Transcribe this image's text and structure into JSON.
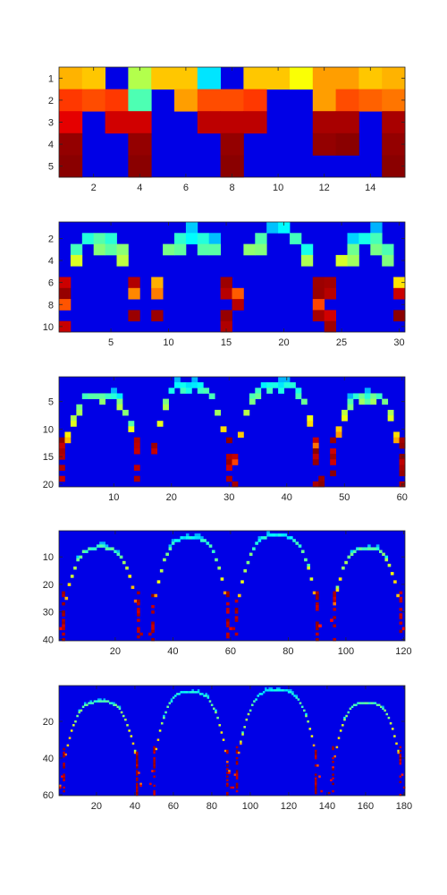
{
  "figure": {
    "background": "#ffffff",
    "colormap": "jet",
    "axis_color": "#262626"
  },
  "chart_data": [
    {
      "type": "heatmap",
      "title": "",
      "xlabel": "",
      "ylabel": "",
      "rows": 5,
      "cols": 15,
      "xlim": [
        0.5,
        15.5
      ],
      "ylim": [
        0.5,
        5.5
      ],
      "y_reversed": true,
      "x_ticks": [
        2,
        4,
        6,
        8,
        10,
        12,
        14
      ],
      "y_ticks": [
        1,
        2,
        3,
        4,
        5
      ],
      "clim": [
        0,
        1
      ],
      "matrix": [
        [
          0.7,
          0.68,
          0.1,
          0.55,
          0.68,
          0.68,
          0.35,
          0.1,
          0.68,
          0.68,
          0.62,
          0.72,
          0.72,
          0.68,
          0.7
        ],
        [
          0.82,
          0.8,
          0.82,
          0.45,
          0.1,
          0.72,
          0.8,
          0.8,
          0.82,
          0.1,
          0.1,
          0.72,
          0.8,
          0.78,
          0.76
        ],
        [
          0.9,
          0.1,
          0.92,
          0.92,
          0.1,
          0.1,
          0.94,
          0.94,
          0.94,
          0.1,
          0.1,
          0.96,
          0.96,
          0.1,
          0.96
        ],
        [
          0.98,
          0.1,
          0.1,
          0.98,
          0.1,
          0.1,
          0.1,
          0.98,
          0.1,
          0.1,
          0.1,
          0.98,
          0.99,
          0.1,
          0.98
        ],
        [
          0.99,
          0.1,
          0.1,
          0.99,
          0.1,
          0.1,
          0.1,
          0.99,
          0.1,
          0.1,
          0.1,
          0.1,
          0.1,
          0.1,
          0.99
        ]
      ]
    },
    {
      "type": "heatmap",
      "title": "",
      "xlabel": "",
      "ylabel": "",
      "rows": 10,
      "cols": 30,
      "xlim": [
        0.5,
        30.5
      ],
      "ylim": [
        0.5,
        10.5
      ],
      "y_reversed": true,
      "x_ticks": [
        5,
        10,
        15,
        20,
        25,
        30
      ],
      "y_ticks": [
        2,
        4,
        6,
        8,
        10
      ],
      "clim": [
        0,
        1
      ],
      "generator": "arches",
      "arch_count": 3,
      "arch_depth": 10,
      "seed": 7
    },
    {
      "type": "heatmap",
      "title": "",
      "xlabel": "",
      "ylabel": "",
      "rows": 20,
      "cols": 60,
      "xlim": [
        0.5,
        60.5
      ],
      "ylim": [
        0.5,
        20.5
      ],
      "y_reversed": true,
      "x_ticks": [
        10,
        20,
        30,
        40,
        50,
        60
      ],
      "y_ticks": [
        5,
        10,
        15,
        20
      ],
      "clim": [
        0,
        1
      ],
      "generator": "arches",
      "arch_count": 3,
      "arch_depth": 20,
      "seed": 11
    },
    {
      "type": "heatmap",
      "title": "",
      "xlabel": "",
      "ylabel": "",
      "rows": 40,
      "cols": 120,
      "xlim": [
        0.5,
        120.5
      ],
      "ylim": [
        0.5,
        40.5
      ],
      "y_reversed": true,
      "x_ticks": [
        20,
        40,
        60,
        80,
        100,
        120
      ],
      "y_ticks": [
        10,
        20,
        30,
        40
      ],
      "clim": [
        0,
        1
      ],
      "generator": "arches",
      "arch_count": 3,
      "arch_depth": 40,
      "seed": 19
    },
    {
      "type": "heatmap",
      "title": "",
      "xlabel": "",
      "ylabel": "",
      "rows": 60,
      "cols": 180,
      "xlim": [
        0.5,
        180.5
      ],
      "ylim": [
        0.5,
        60.5
      ],
      "y_reversed": true,
      "x_ticks": [
        20,
        40,
        60,
        80,
        100,
        120,
        140,
        160,
        180
      ],
      "y_ticks": [
        20,
        40,
        60
      ],
      "clim": [
        0,
        1
      ],
      "generator": "arches",
      "arch_count": 3,
      "arch_depth": 60,
      "seed": 29
    }
  ]
}
